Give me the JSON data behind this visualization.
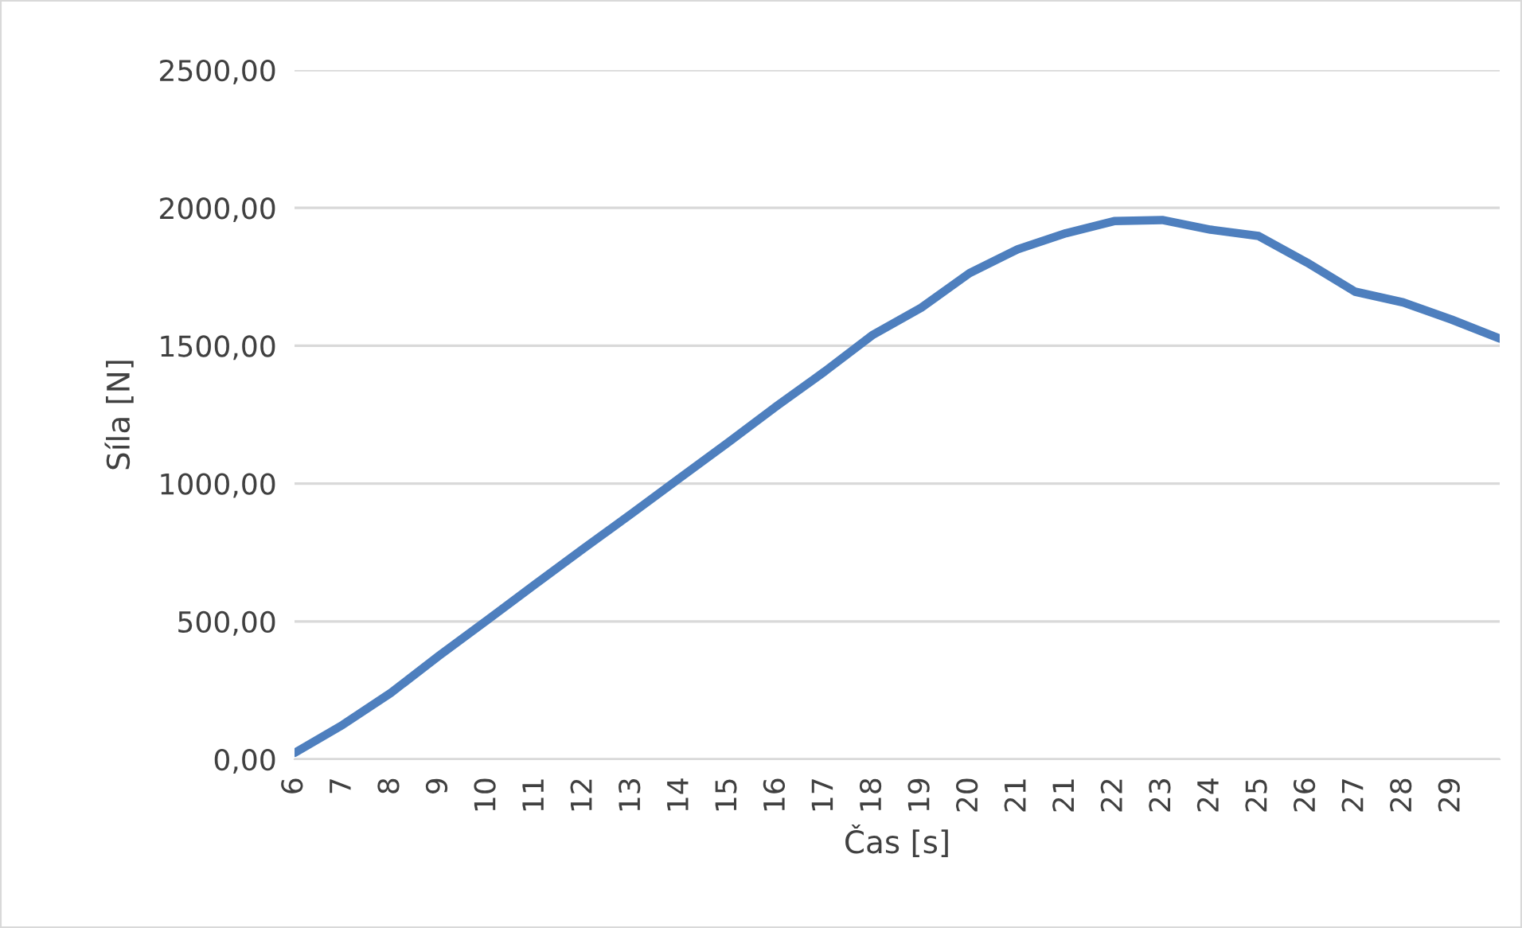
{
  "chart_data": {
    "type": "line",
    "xlabel": "Čas [s]",
    "ylabel": "Síla [N]",
    "categories": [
      "6",
      "7",
      "8",
      "9",
      "10",
      "11",
      "12",
      "13",
      "14",
      "15",
      "16",
      "17",
      "18",
      "19",
      "20",
      "21",
      "21",
      "22",
      "23",
      "24",
      "25",
      "26",
      "27",
      "28",
      "29",
      null
    ],
    "series": [
      {
        "color": "#4e7fbe",
        "values": [
          23,
          125,
          241,
          376,
          505,
          636,
          765,
          892,
          1021,
          1150,
          1281,
          1407,
          1540,
          1638,
          1763,
          1850,
          1908,
          1952,
          1956,
          1921,
          1898,
          1802,
          1696,
          1657,
          1595,
          1526
        ]
      }
    ],
    "ylim": [
      0,
      2500
    ],
    "yticks": [
      {
        "value": 0,
        "label": "0,00"
      },
      {
        "value": 500,
        "label": "500,00"
      },
      {
        "value": 1000,
        "label": "1000,00"
      },
      {
        "value": 1500,
        "label": "1500,00"
      },
      {
        "value": 2000,
        "label": "2000,00"
      },
      {
        "value": 2500,
        "label": "2500,00"
      }
    ],
    "grid": "y",
    "marker": "none",
    "line_style": "solid"
  }
}
